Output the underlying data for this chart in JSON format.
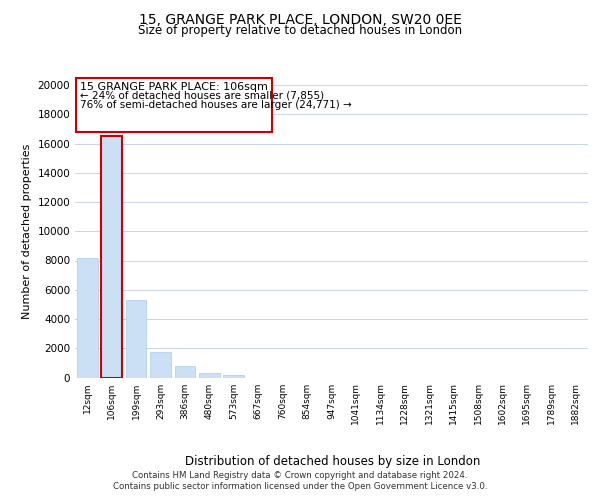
{
  "title1": "15, GRANGE PARK PLACE, LONDON, SW20 0EE",
  "title2": "Size of property relative to detached houses in London",
  "xlabel": "Distribution of detached houses by size in London",
  "ylabel": "Number of detached properties",
  "bar_labels": [
    "12sqm",
    "106sqm",
    "199sqm",
    "293sqm",
    "386sqm",
    "480sqm",
    "573sqm",
    "667sqm",
    "760sqm",
    "854sqm",
    "947sqm",
    "1041sqm",
    "1134sqm",
    "1228sqm",
    "1321sqm",
    "1415sqm",
    "1508sqm",
    "1602sqm",
    "1695sqm",
    "1789sqm",
    "1882sqm"
  ],
  "bar_values": [
    8200,
    16500,
    5300,
    1750,
    800,
    300,
    200,
    0,
    0,
    0,
    0,
    0,
    0,
    0,
    0,
    0,
    0,
    0,
    0,
    0,
    0
  ],
  "bar_color": "#cce0f5",
  "bar_edge_color": "#aacce8",
  "highlight_bar_index": 1,
  "highlight_edge_color": "#cc0000",
  "annotation_title": "15 GRANGE PARK PLACE: 106sqm",
  "annotation_line1": "← 24% of detached houses are smaller (7,855)",
  "annotation_line2": "76% of semi-detached houses are larger (24,771) →",
  "annotation_box_color": "#ffffff",
  "annotation_box_edge": "#cc0000",
  "ylim": [
    0,
    20000
  ],
  "yticks": [
    0,
    2000,
    4000,
    6000,
    8000,
    10000,
    12000,
    14000,
    16000,
    18000,
    20000
  ],
  "footer_line1": "Contains HM Land Registry data © Crown copyright and database right 2024.",
  "footer_line2": "Contains public sector information licensed under the Open Government Licence v3.0.",
  "background_color": "#ffffff",
  "grid_color": "#c8d4e8"
}
